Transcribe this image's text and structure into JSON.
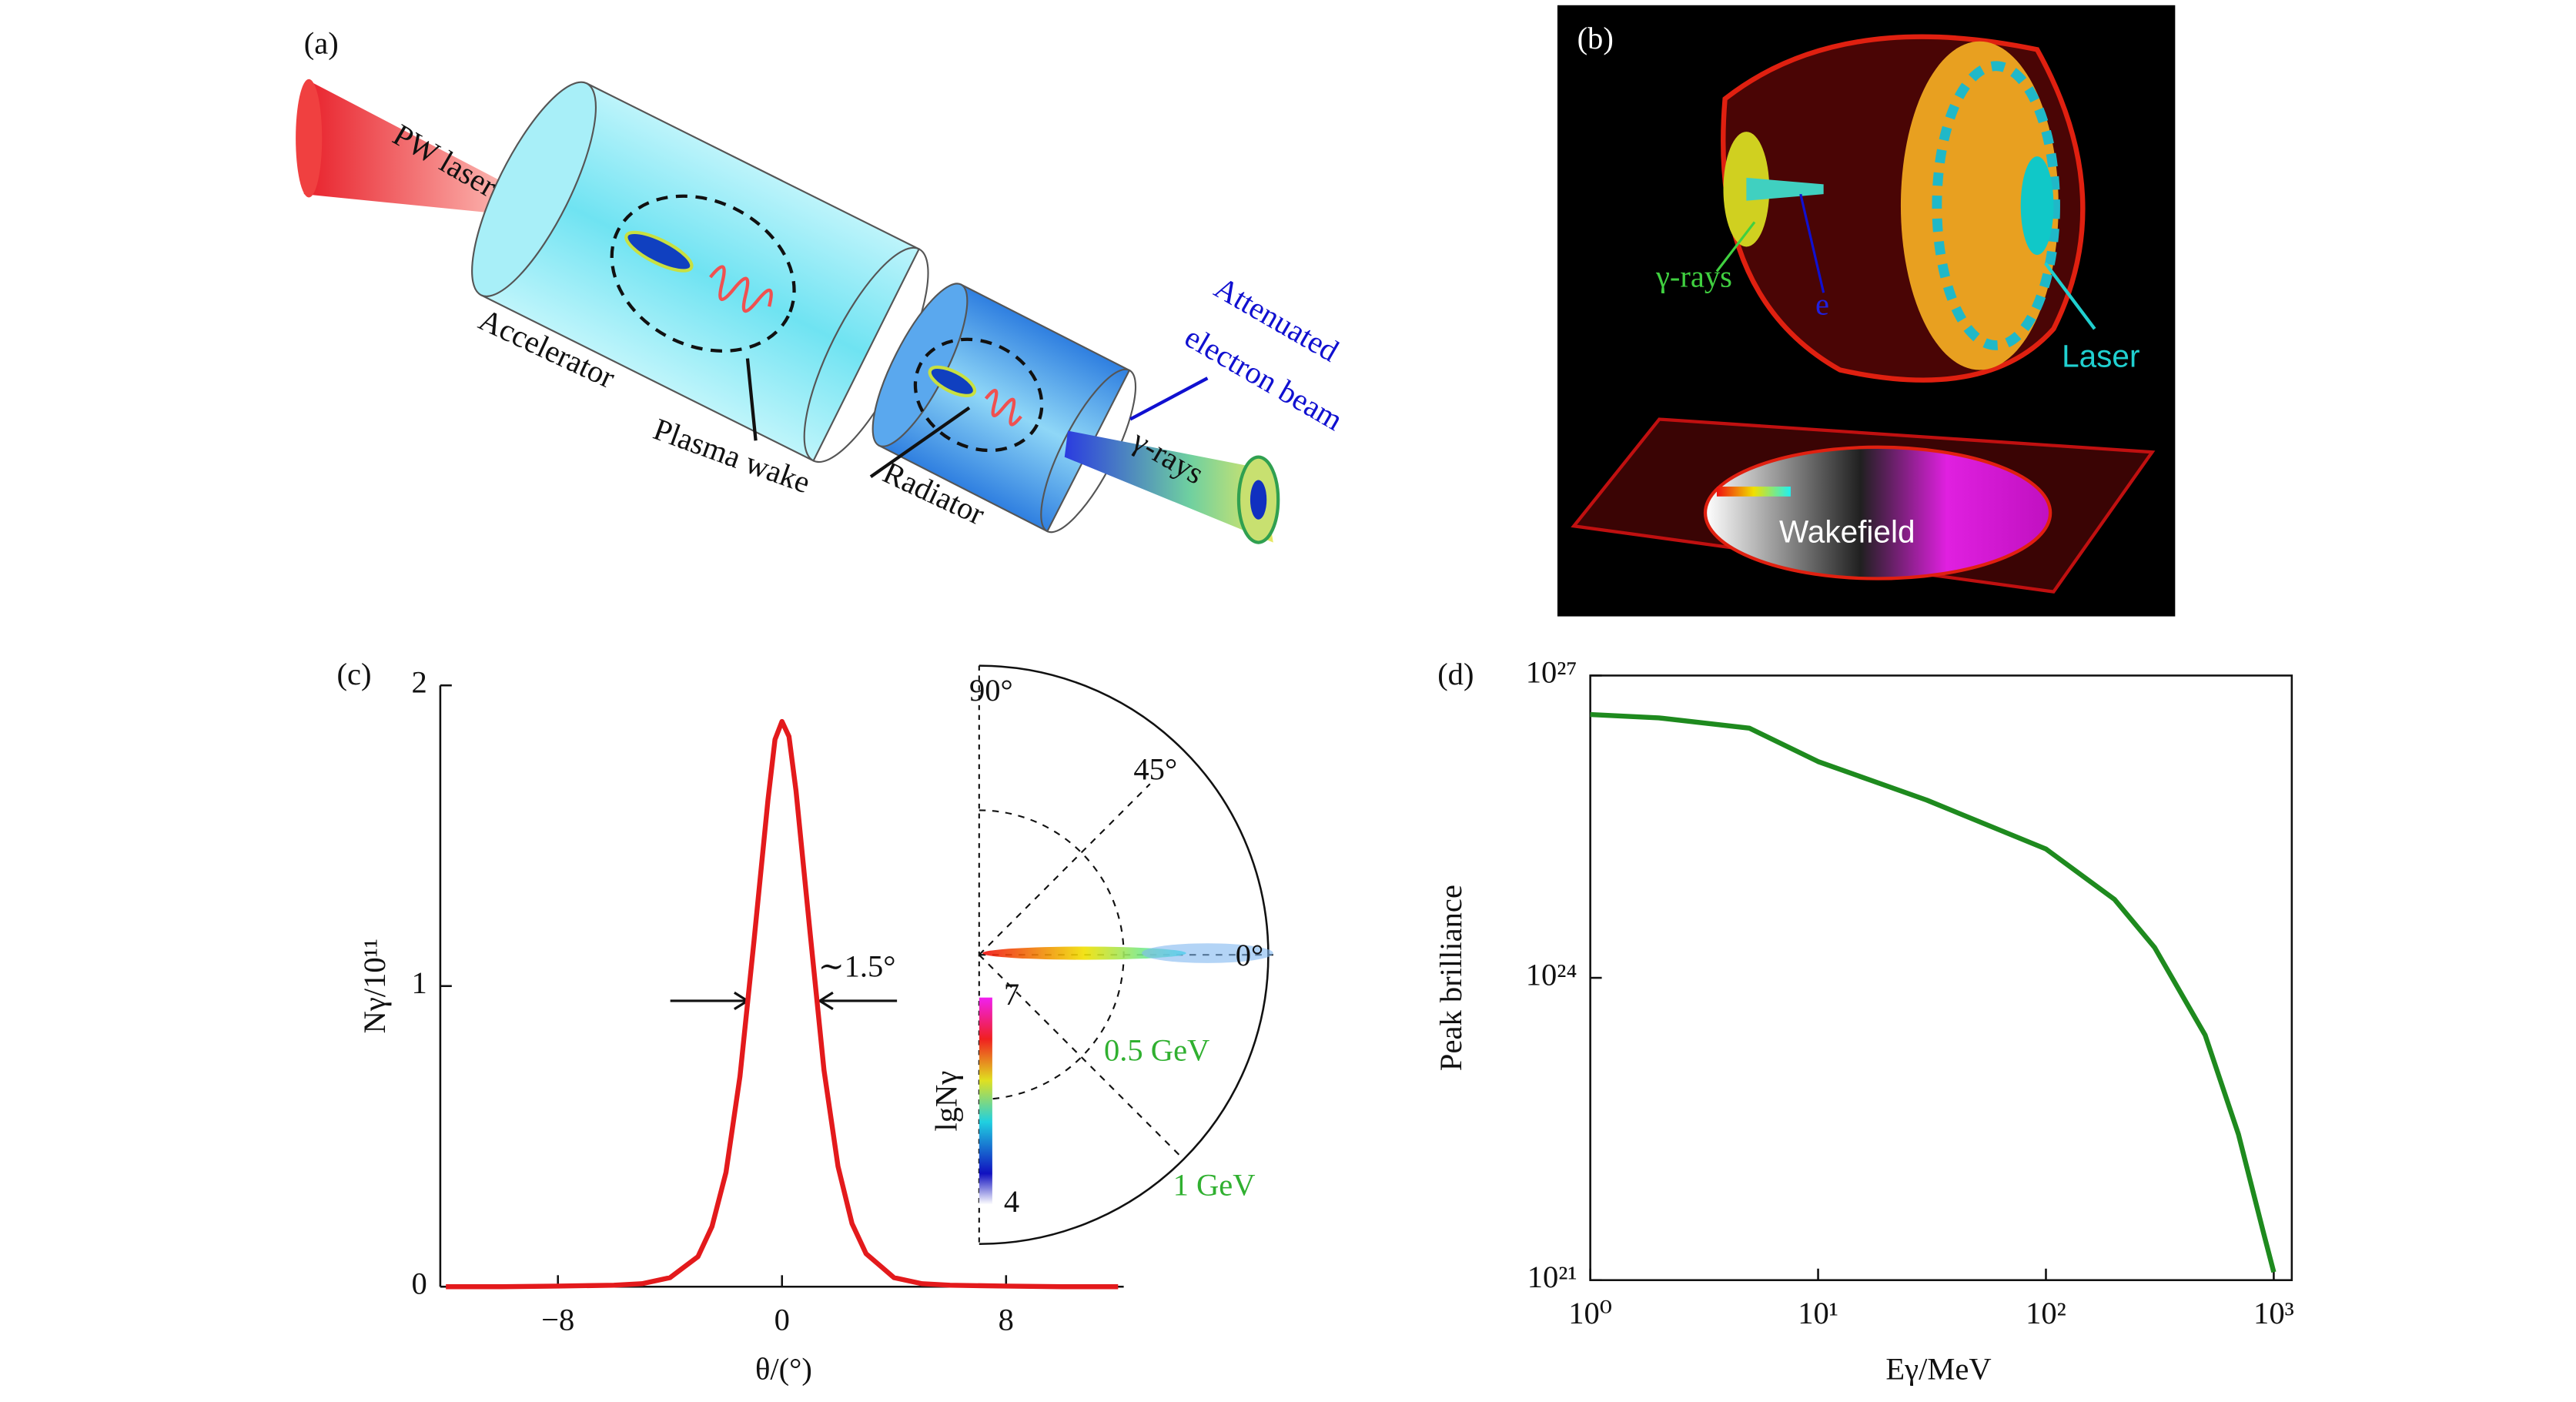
{
  "panel_a": {
    "label": "(a)",
    "laser": "PW laser",
    "accelerator": "Accelerator",
    "plasma_wake": "Plasma wake",
    "radiator": "Radiator",
    "beam": [
      "Attenuated",
      "electron beam"
    ],
    "gamma": "γ-rays"
  },
  "panel_b": {
    "label": "(b)",
    "gamma": "γ-rays",
    "electron": "e",
    "laser": "Laser",
    "wakefield": "Wakefield"
  },
  "chart_data": [
    {
      "type": "line",
      "label": "(c)",
      "xlabel": "θ/(°)",
      "ylabel": "Nγ/10¹¹",
      "x": [
        -12,
        -10,
        -8,
        -6,
        -5,
        -4,
        -3,
        -2.5,
        -2,
        -1.5,
        -1,
        -0.5,
        -0.25,
        0,
        0.25,
        0.5,
        1,
        1.5,
        2,
        2.5,
        3,
        4,
        5,
        6,
        8,
        10,
        12
      ],
      "series": [
        {
          "color": "#e31a1c",
          "values": [
            0,
            0,
            0.002,
            0.005,
            0.01,
            0.03,
            0.1,
            0.2,
            0.38,
            0.7,
            1.15,
            1.62,
            1.82,
            1.88,
            1.83,
            1.65,
            1.18,
            0.72,
            0.4,
            0.21,
            0.11,
            0.03,
            0.01,
            0.005,
            0.002,
            0,
            0
          ]
        }
      ],
      "xlim": [
        -12.2,
        12.2
      ],
      "xticks": [
        {
          "value": -8,
          "label": "−8"
        },
        0,
        8
      ],
      "ylim": [
        0,
        2
      ],
      "yticks": [
        0,
        1,
        2
      ],
      "annotation": "∼1.5°",
      "inset": {
        "angles": [
          "90°",
          "45°",
          "0°"
        ],
        "energies": [
          "0.5 GeV",
          "1 GeV"
        ],
        "colorbar_label": "lgNγ",
        "colorbar_ticks": [
          4,
          7
        ]
      }
    },
    {
      "type": "line",
      "label": "(d)",
      "xlabel": "Eγ/MeV",
      "ylabel": "Peak brilliance",
      "xlog": true,
      "ylog": true,
      "x": [
        1,
        2,
        5,
        10,
        30,
        100,
        200,
        300,
        500,
        700,
        900,
        1000
      ],
      "series": [
        {
          "color": "#1e8a1e",
          "values": [
            4.1e+26,
            3.8e+26,
            3e+26,
            1.4e+26,
            5.8e+25,
            1.9e+25,
            6e+24,
            2e+24,
            2.7e+23,
            2.8e+22,
            3e+21,
            1.2e+21
          ]
        }
      ],
      "xlim": [
        1,
        1200
      ],
      "xticks": [
        {
          "value": 1,
          "label": "10⁰"
        },
        {
          "value": 10,
          "label": "10¹"
        },
        {
          "value": 100,
          "label": "10²"
        },
        {
          "value": 1000,
          "label": "10³"
        }
      ],
      "ylim": [
        1e+21,
        1e+27
      ],
      "yticks": [
        {
          "value": 1e+21,
          "label": "10²¹"
        },
        {
          "value": 1e+24,
          "label": "10²⁴"
        },
        {
          "value": 1e+27,
          "label": "10²⁷"
        }
      ]
    }
  ]
}
